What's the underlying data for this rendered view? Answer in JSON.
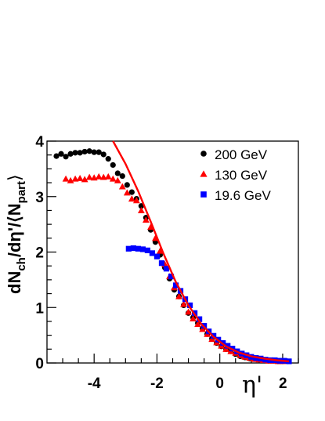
{
  "chart_data": {
    "type": "scatter",
    "xlabel": "η' ",
    "xlabel_suffix": "2",
    "ylabel": "dN",
    "ylabel_sub1": "ch",
    "ylabel_mid": "/dη'/⟨N",
    "ylabel_sub2": "part",
    "ylabel_close": "⟩",
    "xlim": [
      -5.5,
      2.5
    ],
    "ylim": [
      0,
      4
    ],
    "x_major_ticks": [
      -4,
      -2,
      0
    ],
    "x_tick_labels": [
      "-4",
      "-2",
      "0"
    ],
    "y_major_ticks": [
      0,
      1,
      2,
      3,
      4
    ],
    "y_tick_labels": [
      "0",
      "1",
      "2",
      "3",
      "4"
    ],
    "legend_position": "top-right",
    "series": [
      {
        "name": "200 GeV",
        "marker": "circle",
        "color": "#000000",
        "x": [
          -5.2,
          -5.05,
          -4.9,
          -4.75,
          -4.6,
          -4.45,
          -4.3,
          -4.15,
          -4.0,
          -3.85,
          -3.7,
          -3.55,
          -3.4,
          -3.25,
          -3.1,
          -2.95,
          -2.8,
          -2.65,
          -2.5,
          -2.35,
          -2.2,
          -2.05,
          -1.9,
          -1.75,
          -1.6,
          -1.45,
          -1.3,
          -1.15,
          -1.0,
          -0.85,
          -0.7,
          -0.55,
          -0.4,
          -0.25,
          -0.1,
          0.05,
          0.2,
          0.35,
          0.5,
          0.65,
          0.8,
          0.95,
          1.1,
          1.25,
          1.4,
          1.55,
          1.7,
          1.85,
          2.0,
          2.15
        ],
        "y": [
          3.73,
          3.77,
          3.72,
          3.77,
          3.79,
          3.79,
          3.81,
          3.82,
          3.8,
          3.8,
          3.76,
          3.68,
          3.57,
          3.42,
          3.37,
          3.21,
          3.08,
          2.96,
          2.83,
          2.62,
          2.4,
          2.18,
          1.95,
          1.72,
          1.52,
          1.32,
          1.2,
          1.04,
          0.9,
          0.82,
          0.72,
          0.62,
          0.52,
          0.44,
          0.36,
          0.3,
          0.25,
          0.21,
          0.16,
          0.12,
          0.1,
          0.08,
          0.07,
          0.06,
          0.05,
          0.04,
          0.04,
          0.03,
          0.03,
          0.03
        ]
      },
      {
        "name": "130 GeV",
        "marker": "triangle",
        "color": "#ff0000",
        "x": [
          -4.9,
          -4.75,
          -4.6,
          -4.45,
          -4.3,
          -4.15,
          -4.0,
          -3.85,
          -3.7,
          -3.55,
          -3.4,
          -3.25,
          -3.1,
          -2.95,
          -2.8,
          -2.65,
          -2.5,
          -2.35,
          -2.2,
          -2.05,
          -1.9,
          -1.75,
          -1.6,
          -1.45,
          -1.3,
          -1.15,
          -1.0,
          -0.85,
          -0.7,
          -0.55,
          -0.4,
          -0.25,
          -0.1,
          0.05,
          0.2,
          0.35,
          0.5,
          0.65,
          0.8,
          0.95,
          1.1,
          1.25,
          1.4,
          1.55,
          1.7,
          1.85,
          2.0
        ],
        "y": [
          3.32,
          3.29,
          3.32,
          3.33,
          3.31,
          3.35,
          3.34,
          3.36,
          3.35,
          3.36,
          3.32,
          3.29,
          3.18,
          3.07,
          2.96,
          2.93,
          2.75,
          2.58,
          2.45,
          2.25,
          2.02,
          1.78,
          1.56,
          1.36,
          1.2,
          1.06,
          0.92,
          0.8,
          0.7,
          0.61,
          0.52,
          0.43,
          0.37,
          0.31,
          0.25,
          0.21,
          0.18,
          0.14,
          0.11,
          0.09,
          0.07,
          0.06,
          0.05,
          0.04,
          0.04,
          0.03,
          0.03
        ]
      },
      {
        "name": "19.6 GeV",
        "marker": "square",
        "color": "#0000ff",
        "x": [
          -2.9,
          -2.75,
          -2.6,
          -2.45,
          -2.3,
          -2.15,
          -2.0,
          -1.85,
          -1.7,
          -1.55,
          -1.4,
          -1.25,
          -1.1,
          -0.95,
          -0.8,
          -0.65,
          -0.5,
          -0.35,
          -0.2,
          -0.05,
          0.1,
          0.25,
          0.4,
          0.55,
          0.7,
          0.85,
          1.0,
          1.15,
          1.3,
          1.45,
          1.6,
          1.75,
          1.9,
          2.05,
          2.2
        ],
        "y": [
          2.06,
          2.07,
          2.06,
          2.05,
          2.03,
          1.98,
          1.92,
          1.8,
          1.7,
          1.56,
          1.4,
          1.3,
          1.15,
          1.04,
          0.9,
          0.79,
          0.67,
          0.57,
          0.49,
          0.42,
          0.36,
          0.31,
          0.26,
          0.21,
          0.17,
          0.14,
          0.11,
          0.09,
          0.08,
          0.06,
          0.05,
          0.05,
          0.04,
          0.04,
          0.03
        ]
      },
      {
        "name": "",
        "marker": "line",
        "color": "#ff0000",
        "x": [
          -3.4,
          -3.0,
          -2.6,
          -2.2,
          -1.8,
          -1.4,
          -1.0,
          -0.6,
          -0.2,
          0.2,
          0.6,
          1.0,
          1.4,
          1.8,
          2.2
        ],
        "y": [
          4.0,
          3.59,
          3.1,
          2.55,
          1.98,
          1.46,
          1.04,
          0.71,
          0.47,
          0.3,
          0.19,
          0.12,
          0.08,
          0.05,
          0.03
        ]
      }
    ]
  }
}
